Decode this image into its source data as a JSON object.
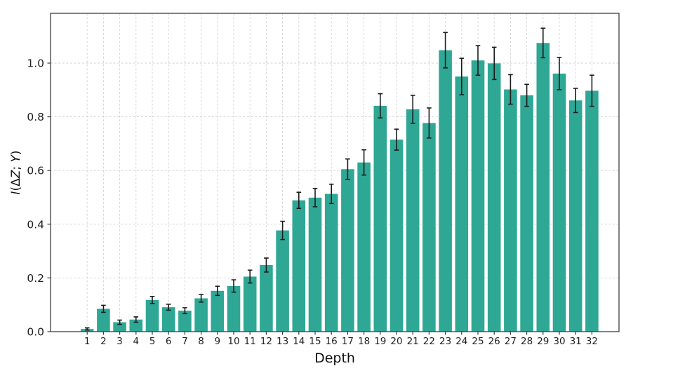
{
  "figure": {
    "background": "#ffffff",
    "title": ""
  },
  "chart_data": {
    "type": "bar",
    "title": "",
    "xlabel": "Depth",
    "ylabel": "I(ΔZ; Y)",
    "ylabel_parts": [
      {
        "text": "I",
        "italic": true
      },
      {
        "text": "(Δ",
        "italic": false
      },
      {
        "text": "Z",
        "italic": true
      },
      {
        "text": "; ",
        "italic": false
      },
      {
        "text": "Y",
        "italic": true
      },
      {
        "text": ")",
        "italic": false
      }
    ],
    "categories": [
      1,
      2,
      3,
      4,
      5,
      6,
      7,
      8,
      9,
      10,
      11,
      12,
      13,
      14,
      15,
      16,
      17,
      18,
      19,
      20,
      21,
      22,
      23,
      24,
      25,
      26,
      27,
      28,
      29,
      30,
      31,
      32
    ],
    "values": [
      0.01,
      0.085,
      0.035,
      0.045,
      0.118,
      0.091,
      0.078,
      0.124,
      0.152,
      0.17,
      0.205,
      0.248,
      0.377,
      0.489,
      0.499,
      0.513,
      0.605,
      0.63,
      0.841,
      0.715,
      0.828,
      0.777,
      1.048,
      0.95,
      1.01,
      0.999,
      0.902,
      0.88,
      1.075,
      0.961,
      0.861,
      0.897
    ],
    "errors": [
      0.004,
      0.013,
      0.008,
      0.01,
      0.013,
      0.011,
      0.011,
      0.014,
      0.017,
      0.023,
      0.024,
      0.026,
      0.034,
      0.03,
      0.034,
      0.036,
      0.038,
      0.047,
      0.045,
      0.039,
      0.052,
      0.056,
      0.066,
      0.068,
      0.055,
      0.06,
      0.055,
      0.041,
      0.055,
      0.06,
      0.045,
      0.058
    ],
    "ylim": [
      0,
      1.185
    ],
    "yticks": [
      0.0,
      0.2,
      0.4,
      0.6,
      0.8,
      1.0
    ],
    "ytick_labels": [
      "0.0",
      "0.2",
      "0.4",
      "0.6",
      "0.8",
      "1.0"
    ],
    "grid": "both-dashed",
    "legend": null,
    "bar_color": "#2fa795",
    "error_color": "#1c1c1c",
    "grid_color": "#d2d2d2",
    "spine_color": "#3d3d3d",
    "tick_label_color": "#1f1f1f"
  }
}
